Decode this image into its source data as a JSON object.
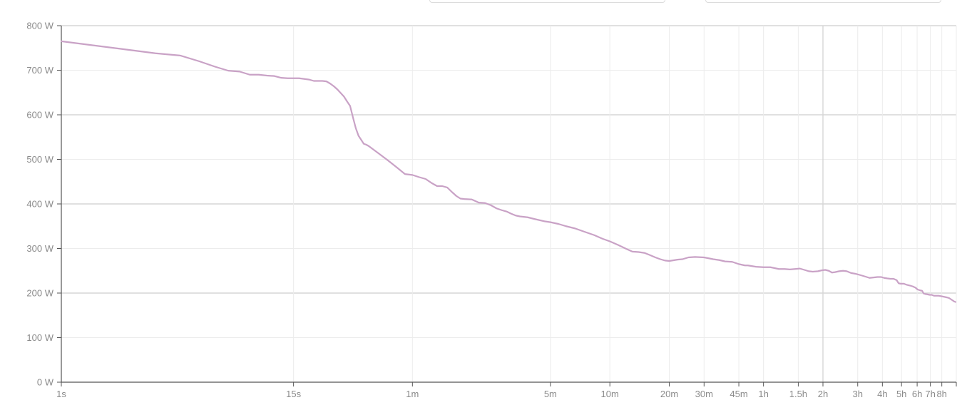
{
  "controls": [
    {
      "name": "range-select-left"
    },
    {
      "name": "range-select-right"
    }
  ],
  "chart_data": {
    "type": "line",
    "title": "",
    "xlabel": "",
    "ylabel": "",
    "x_scale": "log",
    "ylim": [
      0,
      800
    ],
    "y_ticks": [
      {
        "value": 0,
        "label": "0 W"
      },
      {
        "value": 100,
        "label": "100 W"
      },
      {
        "value": 200,
        "label": "200 W"
      },
      {
        "value": 300,
        "label": "300 W"
      },
      {
        "value": 400,
        "label": "400 W"
      },
      {
        "value": 500,
        "label": "500 W"
      },
      {
        "value": 600,
        "label": "600 W"
      },
      {
        "value": 700,
        "label": "700 W"
      },
      {
        "value": 800,
        "label": "800 W"
      }
    ],
    "x_ticks": [
      {
        "seconds": 1,
        "label": "1s"
      },
      {
        "seconds": 15,
        "label": "15s"
      },
      {
        "seconds": 60,
        "label": "1m"
      },
      {
        "seconds": 300,
        "label": "5m"
      },
      {
        "seconds": 600,
        "label": "10m"
      },
      {
        "seconds": 1200,
        "label": "20m"
      },
      {
        "seconds": 1800,
        "label": "30m"
      },
      {
        "seconds": 2700,
        "label": "45m"
      },
      {
        "seconds": 3600,
        "label": "1h"
      },
      {
        "seconds": 5400,
        "label": "1.5h"
      },
      {
        "seconds": 7200,
        "label": "2h"
      },
      {
        "seconds": 10800,
        "label": "3h"
      },
      {
        "seconds": 14400,
        "label": "4h"
      },
      {
        "seconds": 18000,
        "label": "5h"
      },
      {
        "seconds": 21600,
        "label": "6h"
      },
      {
        "seconds": 25200,
        "label": "7h"
      },
      {
        "seconds": 28800,
        "label": "8h"
      }
    ],
    "xlim_seconds": [
      1,
      34100
    ],
    "grid": true,
    "series": [
      {
        "color": "#c9a2c6",
        "points": [
          [
            1,
            765
          ],
          [
            2,
            748
          ],
          [
            3,
            738
          ],
          [
            4,
            733
          ],
          [
            5,
            720
          ],
          [
            6,
            708
          ],
          [
            7,
            699
          ],
          [
            8,
            697
          ],
          [
            9,
            690
          ],
          [
            10,
            690
          ],
          [
            11,
            688
          ],
          [
            12,
            687
          ],
          [
            13,
            683
          ],
          [
            14,
            682
          ],
          [
            15,
            682
          ],
          [
            16,
            682
          ],
          [
            18,
            679
          ],
          [
            19,
            676
          ],
          [
            20,
            676
          ],
          [
            21,
            676
          ],
          [
            22,
            675
          ],
          [
            23,
            670
          ],
          [
            24,
            664
          ],
          [
            25,
            657
          ],
          [
            27,
            641
          ],
          [
            28,
            630
          ],
          [
            29,
            620
          ],
          [
            30,
            594
          ],
          [
            31,
            570
          ],
          [
            32,
            553
          ],
          [
            33,
            544
          ],
          [
            34,
            535
          ],
          [
            35,
            533
          ],
          [
            36,
            530
          ],
          [
            40,
            515
          ],
          [
            45,
            498
          ],
          [
            50,
            482
          ],
          [
            55,
            467
          ],
          [
            60,
            465
          ],
          [
            65,
            460
          ],
          [
            70,
            456
          ],
          [
            75,
            447
          ],
          [
            80,
            440
          ],
          [
            85,
            440
          ],
          [
            90,
            437
          ],
          [
            95,
            427
          ],
          [
            100,
            418
          ],
          [
            105,
            412
          ],
          [
            110,
            411
          ],
          [
            120,
            410
          ],
          [
            130,
            403
          ],
          [
            140,
            402
          ],
          [
            150,
            397
          ],
          [
            160,
            390
          ],
          [
            170,
            386
          ],
          [
            180,
            383
          ],
          [
            190,
            378
          ],
          [
            200,
            374
          ],
          [
            210,
            372
          ],
          [
            230,
            370
          ],
          [
            250,
            366
          ],
          [
            280,
            361
          ],
          [
            300,
            359
          ],
          [
            330,
            355
          ],
          [
            360,
            350
          ],
          [
            400,
            345
          ],
          [
            450,
            337
          ],
          [
            500,
            330
          ],
          [
            550,
            322
          ],
          [
            600,
            316
          ],
          [
            660,
            308
          ],
          [
            720,
            300
          ],
          [
            780,
            293
          ],
          [
            840,
            292
          ],
          [
            900,
            290
          ],
          [
            960,
            285
          ],
          [
            1020,
            280
          ],
          [
            1080,
            276
          ],
          [
            1140,
            273
          ],
          [
            1200,
            272
          ],
          [
            1320,
            275
          ],
          [
            1400,
            276
          ],
          [
            1500,
            280
          ],
          [
            1620,
            281
          ],
          [
            1800,
            280
          ],
          [
            1900,
            278
          ],
          [
            2000,
            276
          ],
          [
            2150,
            274
          ],
          [
            2300,
            271
          ],
          [
            2500,
            270
          ],
          [
            2700,
            265
          ],
          [
            2900,
            262
          ],
          [
            3000,
            262
          ],
          [
            3300,
            259
          ],
          [
            3600,
            258
          ],
          [
            3900,
            258
          ],
          [
            4100,
            256
          ],
          [
            4300,
            254
          ],
          [
            4600,
            254
          ],
          [
            4900,
            253
          ],
          [
            5200,
            254
          ],
          [
            5500,
            255
          ],
          [
            5800,
            252
          ],
          [
            6100,
            249
          ],
          [
            6400,
            248
          ],
          [
            6800,
            249
          ],
          [
            7100,
            251
          ],
          [
            7400,
            252
          ],
          [
            7700,
            250
          ],
          [
            8000,
            246
          ],
          [
            8300,
            247
          ],
          [
            8700,
            249
          ],
          [
            9100,
            250
          ],
          [
            9500,
            249
          ],
          [
            10000,
            245
          ],
          [
            10600,
            243
          ],
          [
            11200,
            240
          ],
          [
            11800,
            237
          ],
          [
            12400,
            234
          ],
          [
            13000,
            235
          ],
          [
            13600,
            236
          ],
          [
            14200,
            236
          ],
          [
            14700,
            234
          ],
          [
            15200,
            233
          ],
          [
            15800,
            232
          ],
          [
            16400,
            232
          ],
          [
            17000,
            229
          ],
          [
            17400,
            222
          ],
          [
            17800,
            221
          ],
          [
            18500,
            221
          ],
          [
            19000,
            219
          ],
          [
            19800,
            217
          ],
          [
            20500,
            215
          ],
          [
            21200,
            212
          ],
          [
            21700,
            208
          ],
          [
            22400,
            206
          ],
          [
            22900,
            205
          ],
          [
            23300,
            199
          ],
          [
            23700,
            198
          ],
          [
            24400,
            197
          ],
          [
            25000,
            196
          ],
          [
            25600,
            196
          ],
          [
            26300,
            194
          ],
          [
            27000,
            194
          ],
          [
            27800,
            194
          ],
          [
            28500,
            193
          ],
          [
            29300,
            192
          ],
          [
            30000,
            191
          ],
          [
            30700,
            190
          ],
          [
            31300,
            189
          ],
          [
            31800,
            187
          ],
          [
            32300,
            185
          ],
          [
            32800,
            183
          ],
          [
            33300,
            181
          ],
          [
            33800,
            180
          ]
        ]
      }
    ]
  }
}
